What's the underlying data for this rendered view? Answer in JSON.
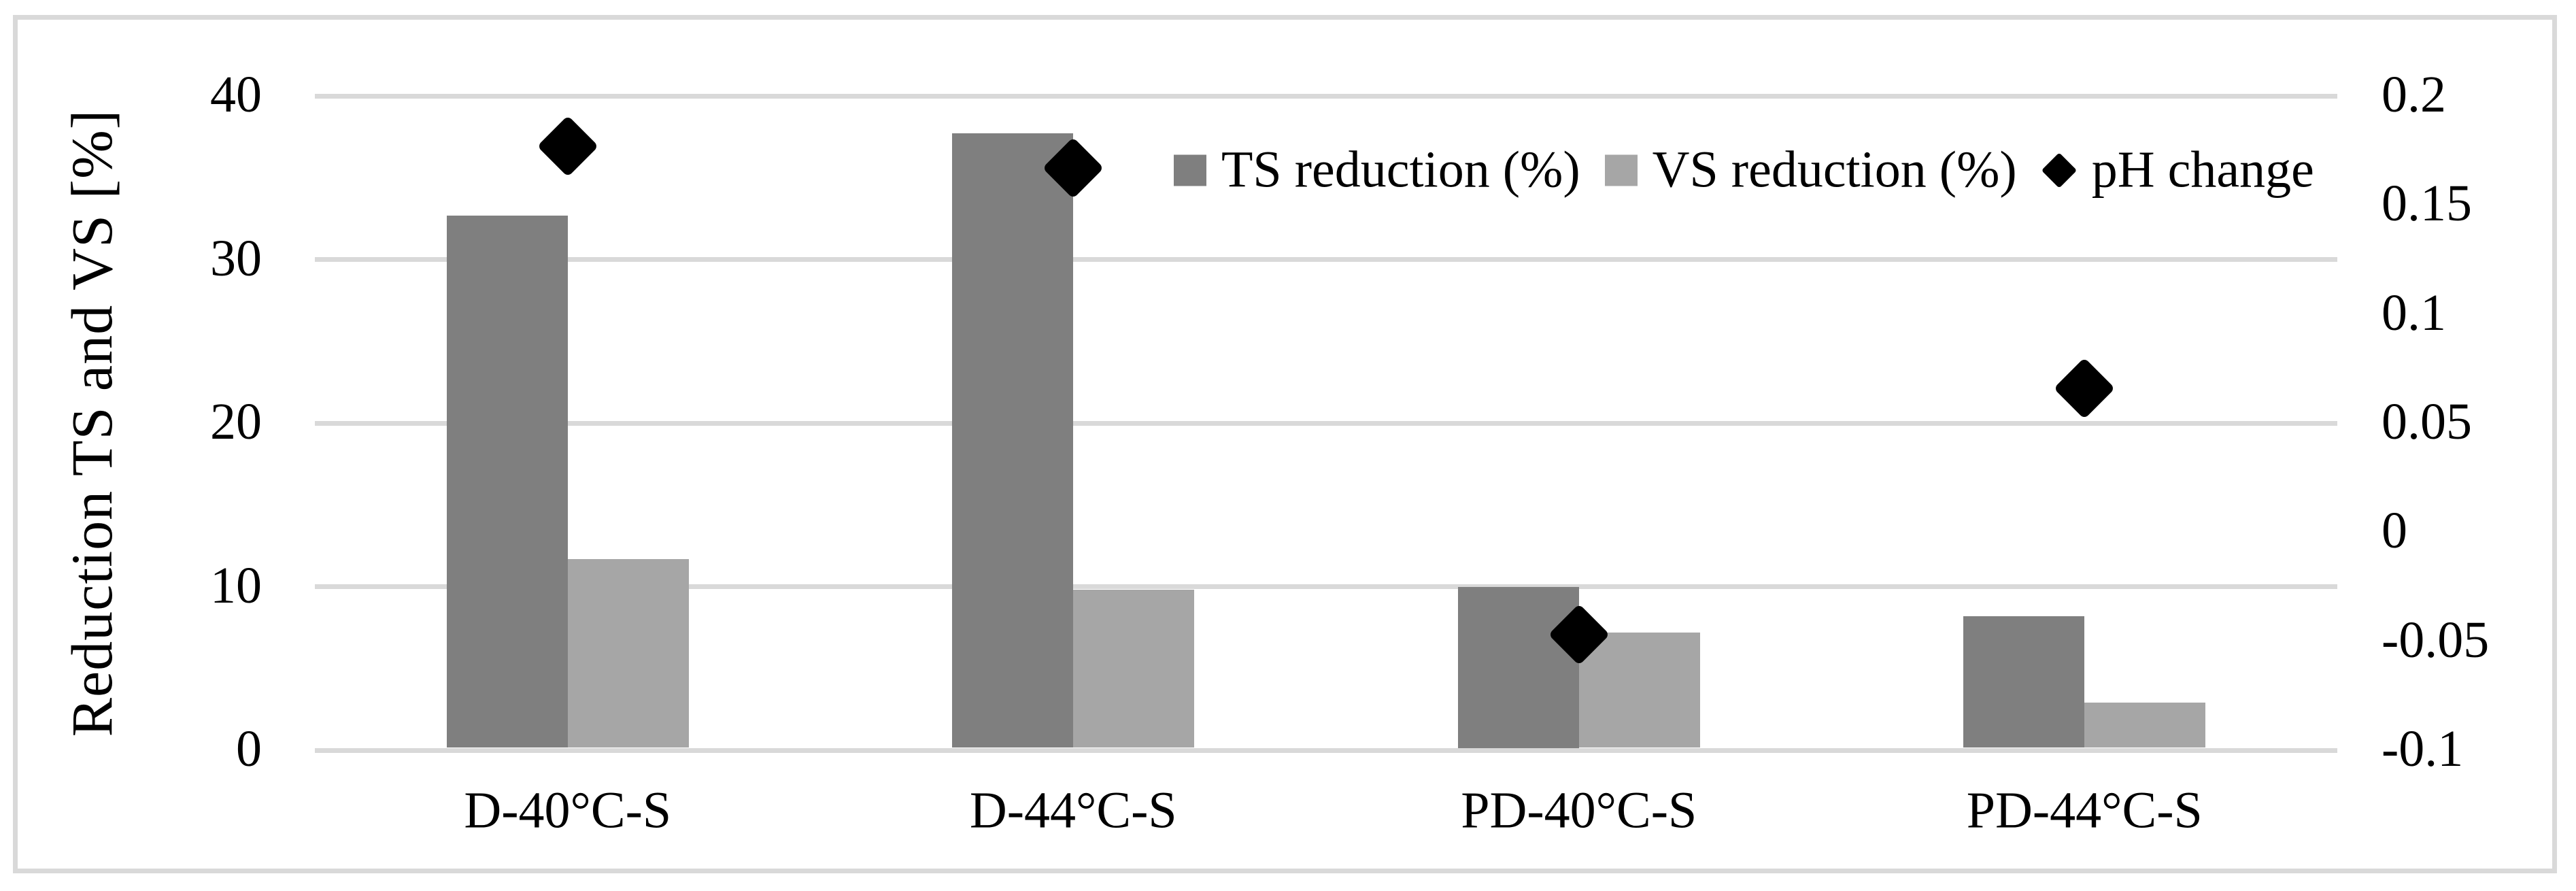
{
  "chart_data": {
    "type": "bar",
    "subtype": "grouped-bars-with-scatter-overlay-dual-axis",
    "title": "",
    "categories": [
      "D-40°C-S",
      "D-44°C-S",
      "PD-40°C-S",
      "PD-44°C-S"
    ],
    "series": [
      {
        "name": "TS reduction (%)",
        "type": "bar",
        "axis": "left",
        "color": "#7f7f7f",
        "marker": "square",
        "values": [
          32.7,
          37.7,
          10.0,
          8.2
        ]
      },
      {
        "name": "VS reduction (%)",
        "type": "bar",
        "axis": "left",
        "color": "#a6a6a6",
        "marker": "square",
        "values": [
          11.7,
          9.8,
          7.2,
          2.9
        ]
      },
      {
        "name": "pH change",
        "type": "scatter",
        "axis": "right",
        "color": "#000000",
        "marker": "diamond",
        "values": [
          0.177,
          0.167,
          -0.047,
          0.066
        ]
      }
    ],
    "left_axis": {
      "title": "Reduction TS and VS [%]",
      "min": 0,
      "max": 40,
      "tick_labels": [
        "40",
        "30",
        "20",
        "10",
        "0"
      ],
      "tick_values": [
        40,
        30,
        20,
        10,
        0
      ]
    },
    "right_axis": {
      "title": "",
      "min": -0.1,
      "max": 0.2,
      "tick_labels": [
        "0.2",
        "0.15",
        "0.1",
        "0.05",
        "0",
        "-0.05",
        "-0.1"
      ],
      "tick_values": [
        0.2,
        0.15,
        0.1,
        0.05,
        0,
        -0.05,
        -0.1
      ]
    },
    "grid": true,
    "legend_position": "inside-top-right",
    "colors": {
      "grid": "#d9d9d9",
      "frame_border": "#d9d9d9",
      "text": "#000000",
      "background": "#ffffff"
    }
  }
}
